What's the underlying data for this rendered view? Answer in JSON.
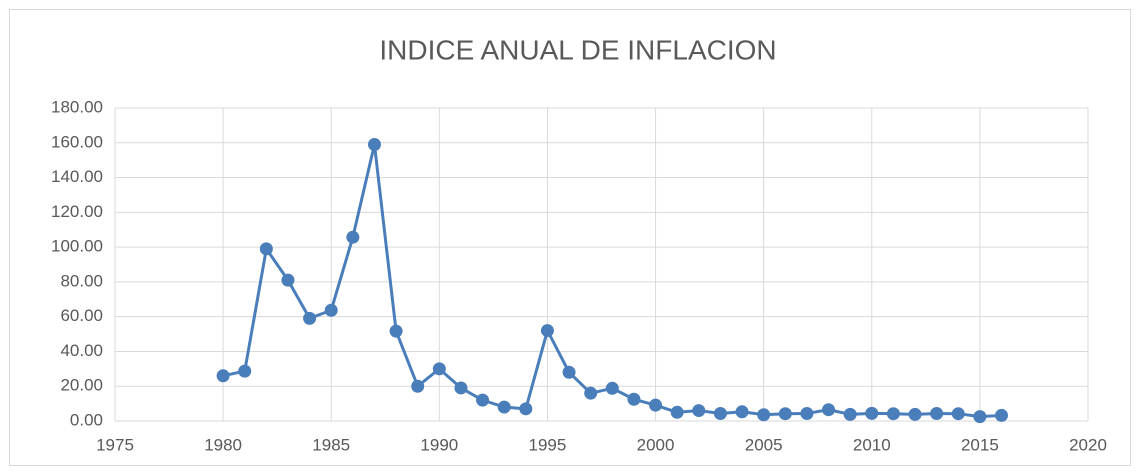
{
  "chart_data": {
    "type": "line",
    "title": "INDICE ANUAL DE INFLACION",
    "x": [
      1980,
      1981,
      1982,
      1983,
      1984,
      1985,
      1986,
      1987,
      1988,
      1989,
      1990,
      1991,
      1992,
      1993,
      1994,
      1995,
      1996,
      1997,
      1998,
      1999,
      2000,
      2001,
      2002,
      2003,
      2004,
      2005,
      2006,
      2007,
      2008,
      2009,
      2010,
      2011,
      2012,
      2013,
      2014,
      2015,
      2016
    ],
    "values": [
      26,
      28.7,
      99,
      81,
      59,
      63.7,
      105.7,
      159,
      51.7,
      20,
      30,
      19,
      12,
      8,
      7,
      52,
      28,
      16,
      18.8,
      12.5,
      9.1,
      5,
      6,
      4.3,
      5.3,
      3.6,
      4.2,
      4.3,
      6.5,
      3.8,
      4.4,
      4.2,
      3.8,
      4.3,
      4.2,
      2.5,
      3.2
    ],
    "color": "#4a7ebb",
    "xlim": [
      1975,
      2020
    ],
    "xticks": [
      1975,
      1980,
      1985,
      1990,
      1995,
      2000,
      2005,
      2010,
      2015,
      2020
    ],
    "ylim": [
      0,
      180
    ],
    "yticks": [
      {
        "value": 0,
        "label": "0.00"
      },
      {
        "value": 20,
        "label": "20.00"
      },
      {
        "value": 40,
        "label": "40.00"
      },
      {
        "value": 60,
        "label": "60.00"
      },
      {
        "value": 80,
        "label": "80.00"
      },
      {
        "value": 100,
        "label": "100.00"
      },
      {
        "value": 120,
        "label": "120.00"
      },
      {
        "value": 140,
        "label": "140.00"
      },
      {
        "value": 160,
        "label": "160.00"
      },
      {
        "value": 180,
        "label": "180.00"
      }
    ],
    "grid": true
  }
}
